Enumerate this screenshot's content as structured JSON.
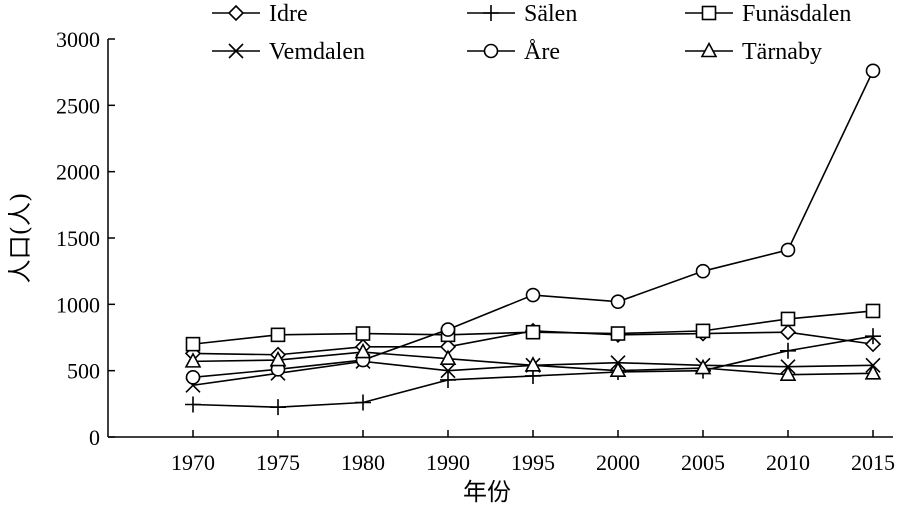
{
  "chart_data": {
    "type": "line",
    "title": "",
    "xlabel": "年份",
    "ylabel": "人口(人)",
    "categories": [
      "1970",
      "1975",
      "1980",
      "1990",
      "1995",
      "2000",
      "2005",
      "2010",
      "2015"
    ],
    "ylim": [
      0,
      3000
    ],
    "yticks": [
      "0",
      "500",
      "1000",
      "1500",
      "2000",
      "2500",
      "3000"
    ],
    "grid": false,
    "legend_position": "top",
    "series": [
      {
        "name": "Idre",
        "marker": "diamond",
        "values": [
          630,
          620,
          680,
          680,
          800,
          770,
          780,
          790,
          700
        ]
      },
      {
        "name": "Sälen",
        "marker": "plus",
        "values": [
          245,
          225,
          260,
          430,
          460,
          490,
          500,
          650,
          760
        ]
      },
      {
        "name": "Funäsdalen",
        "marker": "square",
        "values": [
          700,
          770,
          780,
          770,
          790,
          780,
          800,
          890,
          950
        ]
      },
      {
        "name": "Vemdalen",
        "marker": "x",
        "values": [
          390,
          480,
          570,
          500,
          540,
          560,
          540,
          530,
          540
        ]
      },
      {
        "name": "Åre",
        "marker": "circle",
        "values": [
          450,
          510,
          580,
          810,
          1070,
          1020,
          1250,
          1410,
          2760
        ]
      },
      {
        "name": "Tärnaby",
        "marker": "triangle",
        "values": [
          570,
          580,
          640,
          590,
          540,
          500,
          520,
          470,
          480
        ]
      }
    ]
  }
}
